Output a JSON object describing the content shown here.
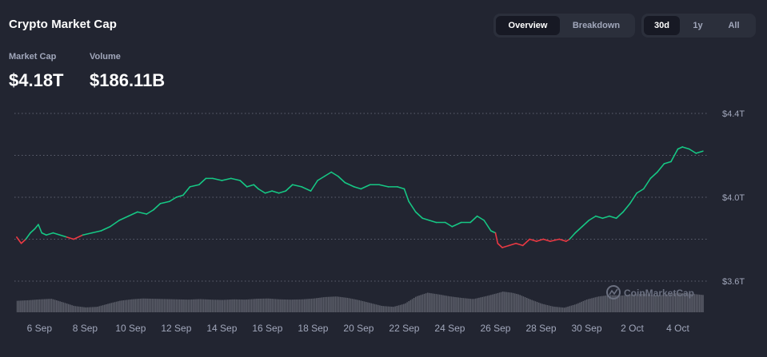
{
  "header": {
    "title": "Crypto Market Cap",
    "view_tabs": [
      {
        "label": "Overview",
        "active": true
      },
      {
        "label": "Breakdown",
        "active": false
      }
    ],
    "range_tabs": [
      {
        "label": "30d",
        "active": true
      },
      {
        "label": "1y",
        "active": false
      },
      {
        "label": "All",
        "active": false
      }
    ]
  },
  "stats": {
    "market_cap_label": "Market Cap",
    "market_cap_value": "$4.18T",
    "volume_label": "Volume",
    "volume_value": "$186.11B"
  },
  "watermark": "CoinMarketCap",
  "colors": {
    "up": "#16c784",
    "down": "#ea3943",
    "grid": "#5d6170",
    "volume": "#5b5e69",
    "background": "#222531"
  },
  "chart_data": {
    "type": "line",
    "ylim": [
      3.6,
      4.4
    ],
    "y_ticks": [
      {
        "value": 4.4,
        "label": "$4.4T"
      },
      {
        "value": 4.0,
        "label": "$4.0T"
      },
      {
        "value": 3.6,
        "label": "$3.6T"
      }
    ],
    "grid_values": [
      4.4,
      4.2,
      4.0,
      3.8,
      3.6
    ],
    "xlim": [
      4.9,
      35.35
    ],
    "x_ticks": [
      {
        "day": 6,
        "label": "6 Sep"
      },
      {
        "day": 8,
        "label": "8 Sep"
      },
      {
        "day": 10,
        "label": "10 Sep"
      },
      {
        "day": 12,
        "label": "12 Sep"
      },
      {
        "day": 14,
        "label": "14 Sep"
      },
      {
        "day": 16,
        "label": "16 Sep"
      },
      {
        "day": 18,
        "label": "18 Sep"
      },
      {
        "day": 20,
        "label": "20 Sep"
      },
      {
        "day": 22,
        "label": "22 Sep"
      },
      {
        "day": 24,
        "label": "24 Sep"
      },
      {
        "day": 26,
        "label": "26 Sep"
      },
      {
        "day": 28,
        "label": "28 Sep"
      },
      {
        "day": 30,
        "label": "30 Sep"
      },
      {
        "day": 32,
        "label": "2 Oct"
      },
      {
        "day": 34,
        "label": "4 Oct"
      }
    ],
    "baseline": 3.81,
    "series": [
      {
        "values": [
          [
            5.0,
            3.81
          ],
          [
            5.2,
            3.78
          ],
          [
            5.4,
            3.8
          ],
          [
            5.6,
            3.83
          ],
          [
            5.8,
            3.85
          ],
          [
            5.95,
            3.87
          ],
          [
            6.1,
            3.83
          ],
          [
            6.3,
            3.82
          ],
          [
            6.6,
            3.83
          ],
          [
            6.9,
            3.82
          ],
          [
            7.2,
            3.81
          ],
          [
            7.5,
            3.8
          ],
          [
            7.9,
            3.82
          ],
          [
            8.3,
            3.83
          ],
          [
            8.7,
            3.84
          ],
          [
            9.1,
            3.86
          ],
          [
            9.5,
            3.89
          ],
          [
            9.9,
            3.91
          ],
          [
            10.3,
            3.93
          ],
          [
            10.7,
            3.92
          ],
          [
            11.0,
            3.94
          ],
          [
            11.3,
            3.97
          ],
          [
            11.7,
            3.98
          ],
          [
            12.0,
            4.0
          ],
          [
            12.3,
            4.01
          ],
          [
            12.6,
            4.05
          ],
          [
            13.0,
            4.06
          ],
          [
            13.3,
            4.09
          ],
          [
            13.6,
            4.09
          ],
          [
            14.0,
            4.08
          ],
          [
            14.4,
            4.09
          ],
          [
            14.8,
            4.08
          ],
          [
            15.1,
            4.05
          ],
          [
            15.4,
            4.06
          ],
          [
            15.6,
            4.04
          ],
          [
            15.9,
            4.02
          ],
          [
            16.2,
            4.03
          ],
          [
            16.5,
            4.02
          ],
          [
            16.8,
            4.03
          ],
          [
            17.1,
            4.06
          ],
          [
            17.5,
            4.05
          ],
          [
            17.9,
            4.03
          ],
          [
            18.2,
            4.08
          ],
          [
            18.5,
            4.1
          ],
          [
            18.8,
            4.12
          ],
          [
            19.1,
            4.1
          ],
          [
            19.4,
            4.07
          ],
          [
            19.8,
            4.05
          ],
          [
            20.1,
            4.04
          ],
          [
            20.5,
            4.06
          ],
          [
            20.9,
            4.06
          ],
          [
            21.3,
            4.05
          ],
          [
            21.7,
            4.05
          ],
          [
            22.0,
            4.04
          ],
          [
            22.2,
            3.98
          ],
          [
            22.5,
            3.93
          ],
          [
            22.8,
            3.9
          ],
          [
            23.1,
            3.89
          ],
          [
            23.4,
            3.88
          ],
          [
            23.8,
            3.88
          ],
          [
            24.1,
            3.86
          ],
          [
            24.5,
            3.88
          ],
          [
            24.9,
            3.88
          ],
          [
            25.2,
            3.91
          ],
          [
            25.5,
            3.89
          ],
          [
            25.8,
            3.84
          ],
          [
            26.0,
            3.83
          ]
        ]
      },
      {
        "values": [
          [
            26.0,
            3.83
          ],
          [
            26.1,
            3.78
          ],
          [
            26.3,
            3.76
          ],
          [
            26.6,
            3.77
          ],
          [
            26.9,
            3.78
          ],
          [
            27.2,
            3.77
          ],
          [
            27.5,
            3.8
          ],
          [
            27.8,
            3.79
          ],
          [
            28.1,
            3.8
          ],
          [
            28.4,
            3.79
          ],
          [
            28.8,
            3.8
          ],
          [
            29.1,
            3.79
          ],
          [
            29.25,
            3.8
          ]
        ]
      },
      {
        "values": [
          [
            29.25,
            3.8
          ],
          [
            29.5,
            3.83
          ],
          [
            29.8,
            3.86
          ],
          [
            30.1,
            3.89
          ],
          [
            30.4,
            3.91
          ],
          [
            30.7,
            3.9
          ],
          [
            31.0,
            3.91
          ],
          [
            31.3,
            3.9
          ],
          [
            31.6,
            3.93
          ],
          [
            31.9,
            3.97
          ],
          [
            32.2,
            4.02
          ],
          [
            32.5,
            4.04
          ],
          [
            32.8,
            4.09
          ],
          [
            33.1,
            4.12
          ],
          [
            33.4,
            4.16
          ],
          [
            33.7,
            4.17
          ],
          [
            34.0,
            4.23
          ],
          [
            34.2,
            4.24
          ],
          [
            34.5,
            4.23
          ],
          [
            34.8,
            4.21
          ],
          [
            35.1,
            4.22
          ]
        ]
      }
    ],
    "volume_values": [
      [
        5.0,
        0.4
      ],
      [
        5.5,
        0.42
      ],
      [
        6.0,
        0.45
      ],
      [
        6.5,
        0.47
      ],
      [
        7.0,
        0.35
      ],
      [
        7.5,
        0.22
      ],
      [
        8.0,
        0.17
      ],
      [
        8.5,
        0.19
      ],
      [
        9.0,
        0.3
      ],
      [
        9.5,
        0.4
      ],
      [
        10.0,
        0.45
      ],
      [
        10.5,
        0.48
      ],
      [
        11.0,
        0.47
      ],
      [
        11.5,
        0.46
      ],
      [
        12.0,
        0.45
      ],
      [
        12.5,
        0.44
      ],
      [
        13.0,
        0.46
      ],
      [
        13.5,
        0.44
      ],
      [
        14.0,
        0.43
      ],
      [
        14.5,
        0.45
      ],
      [
        15.0,
        0.44
      ],
      [
        15.5,
        0.47
      ],
      [
        16.0,
        0.48
      ],
      [
        16.5,
        0.45
      ],
      [
        17.0,
        0.44
      ],
      [
        17.5,
        0.45
      ],
      [
        18.0,
        0.48
      ],
      [
        18.5,
        0.53
      ],
      [
        19.0,
        0.55
      ],
      [
        19.5,
        0.5
      ],
      [
        20.0,
        0.42
      ],
      [
        20.5,
        0.32
      ],
      [
        21.0,
        0.22
      ],
      [
        21.5,
        0.19
      ],
      [
        22.0,
        0.3
      ],
      [
        22.5,
        0.55
      ],
      [
        23.0,
        0.68
      ],
      [
        23.5,
        0.62
      ],
      [
        24.0,
        0.55
      ],
      [
        24.5,
        0.5
      ],
      [
        25.0,
        0.46
      ],
      [
        25.5,
        0.55
      ],
      [
        26.0,
        0.65
      ],
      [
        26.3,
        0.72
      ],
      [
        26.7,
        0.68
      ],
      [
        27.0,
        0.62
      ],
      [
        27.5,
        0.45
      ],
      [
        28.0,
        0.3
      ],
      [
        28.5,
        0.2
      ],
      [
        29.0,
        0.16
      ],
      [
        29.5,
        0.28
      ],
      [
        30.0,
        0.45
      ],
      [
        30.5,
        0.55
      ],
      [
        31.0,
        0.6
      ],
      [
        31.5,
        0.58
      ],
      [
        32.0,
        0.62
      ],
      [
        32.5,
        0.65
      ],
      [
        33.0,
        0.58
      ],
      [
        33.5,
        0.62
      ],
      [
        34.0,
        0.68
      ],
      [
        34.5,
        0.65
      ],
      [
        35.1,
        0.6
      ]
    ]
  }
}
